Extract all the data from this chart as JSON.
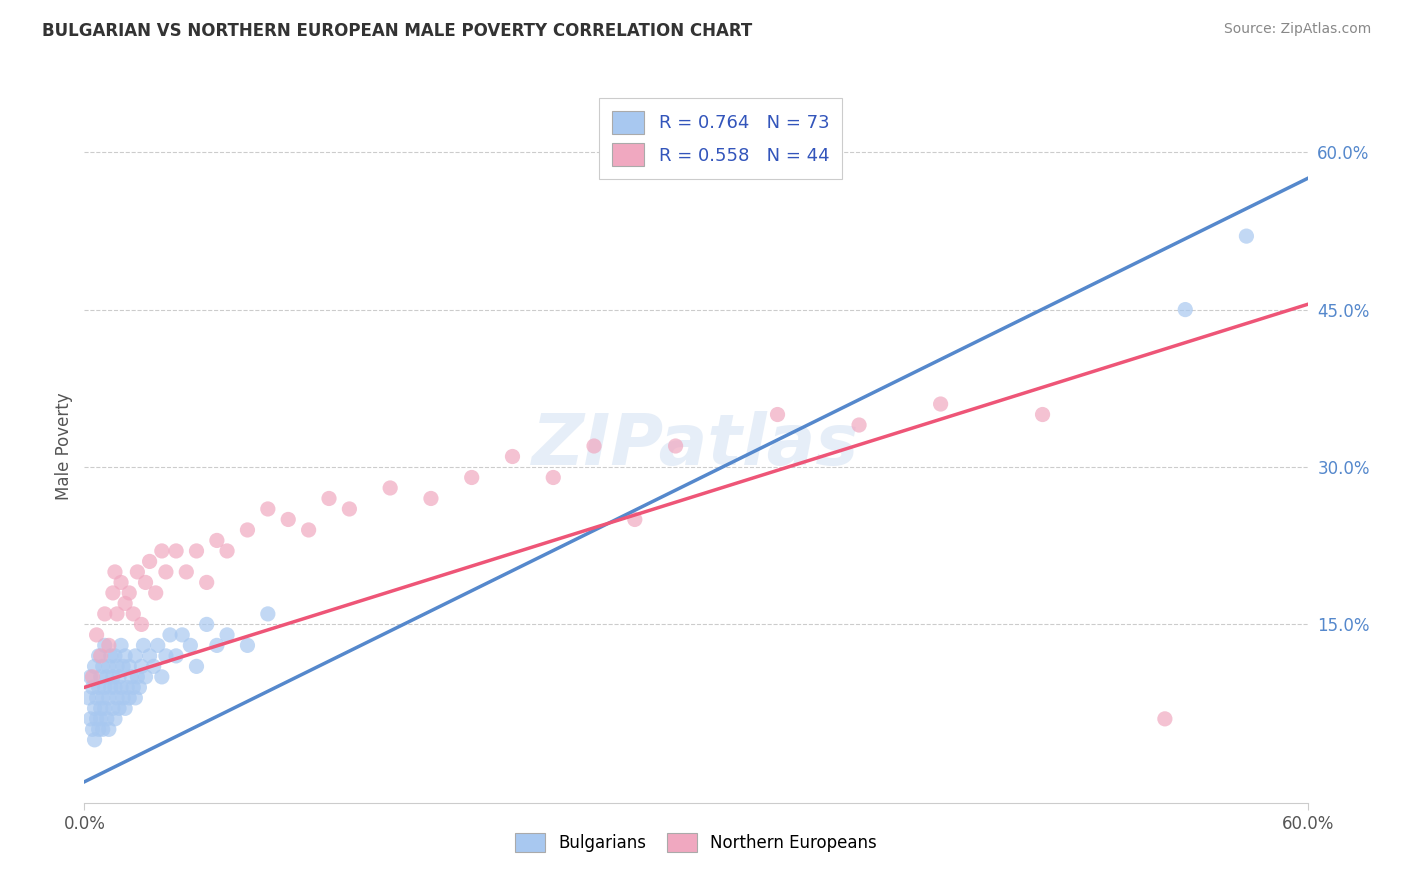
{
  "title": "BULGARIAN VS NORTHERN EUROPEAN MALE POVERTY CORRELATION CHART",
  "source": "Source: ZipAtlas.com",
  "ylabel": "Male Poverty",
  "xlim": [
    0.0,
    0.6
  ],
  "ylim": [
    -0.02,
    0.66
  ],
  "ytick_values": [
    0.15,
    0.3,
    0.45,
    0.6
  ],
  "legend_R1": "R = 0.764",
  "legend_N1": "N = 73",
  "legend_R2": "R = 0.558",
  "legend_N2": "N = 44",
  "color_bulgarian": "#a8c8f0",
  "color_northern": "#f0a8c0",
  "color_line_bulgarian": "#5588cc",
  "color_line_northern": "#ee5577",
  "color_title": "#333333",
  "color_source": "#888888",
  "color_legend_text": "#3355bb",
  "watermark": "ZIPatlas",
  "blue_line_x0": 0.0,
  "blue_line_y0": 0.0,
  "blue_line_x1": 0.6,
  "blue_line_y1": 0.575,
  "pink_line_x0": 0.0,
  "pink_line_y0": 0.09,
  "pink_line_x1": 0.6,
  "pink_line_y1": 0.455,
  "bulgarians_x": [
    0.002,
    0.003,
    0.003,
    0.004,
    0.004,
    0.005,
    0.005,
    0.005,
    0.006,
    0.006,
    0.007,
    0.007,
    0.007,
    0.008,
    0.008,
    0.008,
    0.009,
    0.009,
    0.009,
    0.01,
    0.01,
    0.01,
    0.011,
    0.011,
    0.012,
    0.012,
    0.012,
    0.013,
    0.013,
    0.014,
    0.014,
    0.015,
    0.015,
    0.015,
    0.016,
    0.016,
    0.017,
    0.017,
    0.018,
    0.018,
    0.019,
    0.019,
    0.02,
    0.02,
    0.021,
    0.022,
    0.022,
    0.023,
    0.024,
    0.025,
    0.025,
    0.026,
    0.027,
    0.028,
    0.029,
    0.03,
    0.032,
    0.034,
    0.036,
    0.038,
    0.04,
    0.042,
    0.045,
    0.048,
    0.052,
    0.055,
    0.06,
    0.065,
    0.07,
    0.08,
    0.09,
    0.54,
    0.57
  ],
  "bulgarians_y": [
    0.08,
    0.06,
    0.1,
    0.05,
    0.09,
    0.07,
    0.11,
    0.04,
    0.08,
    0.06,
    0.05,
    0.09,
    0.12,
    0.06,
    0.1,
    0.07,
    0.08,
    0.11,
    0.05,
    0.07,
    0.09,
    0.13,
    0.06,
    0.1,
    0.08,
    0.11,
    0.05,
    0.09,
    0.12,
    0.07,
    0.1,
    0.06,
    0.09,
    0.12,
    0.08,
    0.11,
    0.07,
    0.1,
    0.09,
    0.13,
    0.08,
    0.11,
    0.07,
    0.12,
    0.09,
    0.08,
    0.11,
    0.1,
    0.09,
    0.08,
    0.12,
    0.1,
    0.09,
    0.11,
    0.13,
    0.1,
    0.12,
    0.11,
    0.13,
    0.1,
    0.12,
    0.14,
    0.12,
    0.14,
    0.13,
    0.11,
    0.15,
    0.13,
    0.14,
    0.13,
    0.16,
    0.45,
    0.52
  ],
  "northern_x": [
    0.004,
    0.006,
    0.008,
    0.01,
    0.012,
    0.014,
    0.015,
    0.016,
    0.018,
    0.02,
    0.022,
    0.024,
    0.026,
    0.028,
    0.03,
    0.032,
    0.035,
    0.038,
    0.04,
    0.045,
    0.05,
    0.055,
    0.06,
    0.065,
    0.07,
    0.08,
    0.09,
    0.1,
    0.11,
    0.12,
    0.13,
    0.15,
    0.17,
    0.19,
    0.21,
    0.23,
    0.25,
    0.27,
    0.29,
    0.34,
    0.38,
    0.42,
    0.47,
    0.53
  ],
  "northern_y": [
    0.1,
    0.14,
    0.12,
    0.16,
    0.13,
    0.18,
    0.2,
    0.16,
    0.19,
    0.17,
    0.18,
    0.16,
    0.2,
    0.15,
    0.19,
    0.21,
    0.18,
    0.22,
    0.2,
    0.22,
    0.2,
    0.22,
    0.19,
    0.23,
    0.22,
    0.24,
    0.26,
    0.25,
    0.24,
    0.27,
    0.26,
    0.28,
    0.27,
    0.29,
    0.31,
    0.29,
    0.32,
    0.25,
    0.32,
    0.35,
    0.34,
    0.36,
    0.35,
    0.06
  ],
  "grid_color": "#cccccc",
  "background_color": "#ffffff",
  "legend_border": "#cccccc"
}
